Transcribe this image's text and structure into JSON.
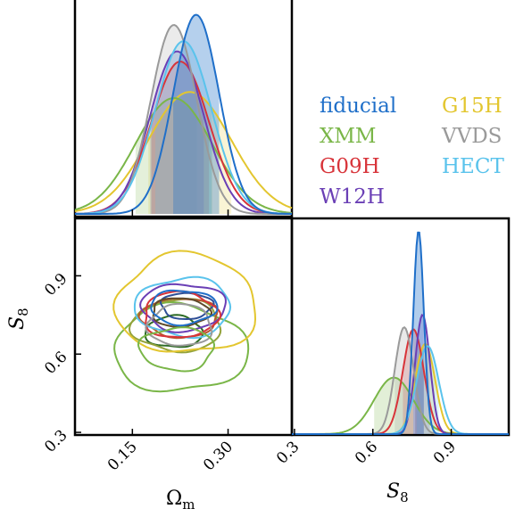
{
  "chart_data": {
    "type": "corner",
    "parameters": [
      "Ωm",
      "S8"
    ],
    "axes": {
      "omega_m": {
        "label_main": "Ω",
        "label_sub": "m",
        "range": [
          0.06,
          0.4
        ],
        "ticks": [
          0.15,
          0.3
        ],
        "tick_labels": [
          "0.15",
          "0.30"
        ]
      },
      "s8": {
        "label_main": "S",
        "label_sub": "8",
        "range": [
          0.29,
          1.12
        ],
        "ticks": [
          0.3,
          0.6,
          0.9
        ],
        "tick_labels": [
          "0.3",
          "0.6",
          "0.9"
        ]
      }
    },
    "legend_columns": [
      [
        "fiducial",
        "XMM",
        "G09H",
        "W12H"
      ],
      [
        "G15H",
        "VVDS",
        "HECT"
      ]
    ],
    "series": [
      {
        "name": "fiducial",
        "color": "#1f6fc9",
        "fill": true,
        "omega_m_mean": 0.25,
        "omega_m_sigma": 0.036,
        "omega_m_peak": 0.98,
        "s8_mean": 0.775,
        "s8_sigma": 0.02,
        "s8_peak": 0.97,
        "contour_68": {
          "center": [
            0.23,
            0.78
          ],
          "radii": [
            0.052,
            0.065
          ]
        },
        "contour_95": null
      },
      {
        "name": "XMM",
        "color": "#7ab648",
        "fill": true,
        "omega_m_mean": 0.215,
        "omega_m_sigma": 0.06,
        "omega_m_peak": 0.57,
        "s8_mean": 0.68,
        "s8_sigma": 0.075,
        "s8_peak": 0.27,
        "contour_68": {
          "center": [
            0.22,
            0.62
          ],
          "radii": [
            0.058,
            0.082
          ]
        },
        "contour_95": {
          "center": [
            0.225,
            0.62
          ],
          "radii": [
            0.105,
            0.165
          ]
        }
      },
      {
        "name": "G09H",
        "color": "#d8343a",
        "fill": true,
        "omega_m_mean": 0.225,
        "omega_m_sigma": 0.045,
        "omega_m_peak": 0.75,
        "s8_mean": 0.755,
        "s8_sigma": 0.04,
        "s8_peak": 0.5,
        "contour_68": {
          "center": [
            0.225,
            0.75
          ],
          "radii": [
            0.058,
            0.088
          ]
        },
        "contour_95": null
      },
      {
        "name": "W12H",
        "color": "#6a3fb5",
        "fill": true,
        "omega_m_mean": 0.22,
        "omega_m_sigma": 0.042,
        "omega_m_peak": 0.8,
        "s8_mean": 0.79,
        "s8_sigma": 0.028,
        "s8_peak": 0.57,
        "contour_68": {
          "center": [
            0.23,
            0.78
          ],
          "radii": [
            0.066,
            0.09
          ]
        },
        "contour_95": null
      },
      {
        "name": "G15H",
        "color": "#e3c62f",
        "fill": true,
        "omega_m_mean": 0.24,
        "omega_m_sigma": 0.065,
        "omega_m_peak": 0.6,
        "s8_mean": 0.8,
        "s8_sigma": 0.038,
        "s8_peak": 0.43,
        "contour_68": {
          "center": [
            0.235,
            0.79
          ],
          "radii": [
            0.11,
            0.19
          ]
        },
        "contour_95": null
      },
      {
        "name": "VVDS",
        "color": "#9a9a9a",
        "fill": true,
        "omega_m_mean": 0.215,
        "omega_m_sigma": 0.036,
        "omega_m_peak": 0.93,
        "s8_mean": 0.72,
        "s8_sigma": 0.036,
        "s8_peak": 0.51,
        "contour_68": {
          "center": [
            0.225,
            0.71
          ],
          "radii": [
            0.05,
            0.08
          ]
        },
        "contour_95": null
      },
      {
        "name": "HECT",
        "color": "#5ac3ec",
        "fill": true,
        "omega_m_mean": 0.23,
        "omega_m_sigma": 0.044,
        "omega_m_peak": 0.85,
        "s8_mean": 0.81,
        "s8_sigma": 0.042,
        "s8_peak": 0.42,
        "contour_68": {
          "center": [
            0.23,
            0.78
          ],
          "radii": [
            0.075,
            0.112
          ]
        },
        "contour_95": null
      }
    ],
    "extra_contours": [
      {
        "color": "#2e6b26",
        "center": [
          0.215,
          0.685
        ],
        "radii": [
          0.045,
          0.06
        ]
      },
      {
        "color": "#93a23b",
        "center": [
          0.22,
          0.71
        ],
        "radii": [
          0.07,
          0.1
        ]
      },
      {
        "color": "#b5572e",
        "center": [
          0.225,
          0.74
        ],
        "radii": [
          0.06,
          0.075
        ]
      },
      {
        "color": "#2e4e96",
        "center": [
          0.235,
          0.785
        ],
        "radii": [
          0.04,
          0.05
        ]
      },
      {
        "color": "#5f4a2a",
        "center": [
          0.225,
          0.76
        ],
        "radii": [
          0.045,
          0.055
        ]
      }
    ],
    "legend_placement": "top-right",
    "grid": false
  }
}
